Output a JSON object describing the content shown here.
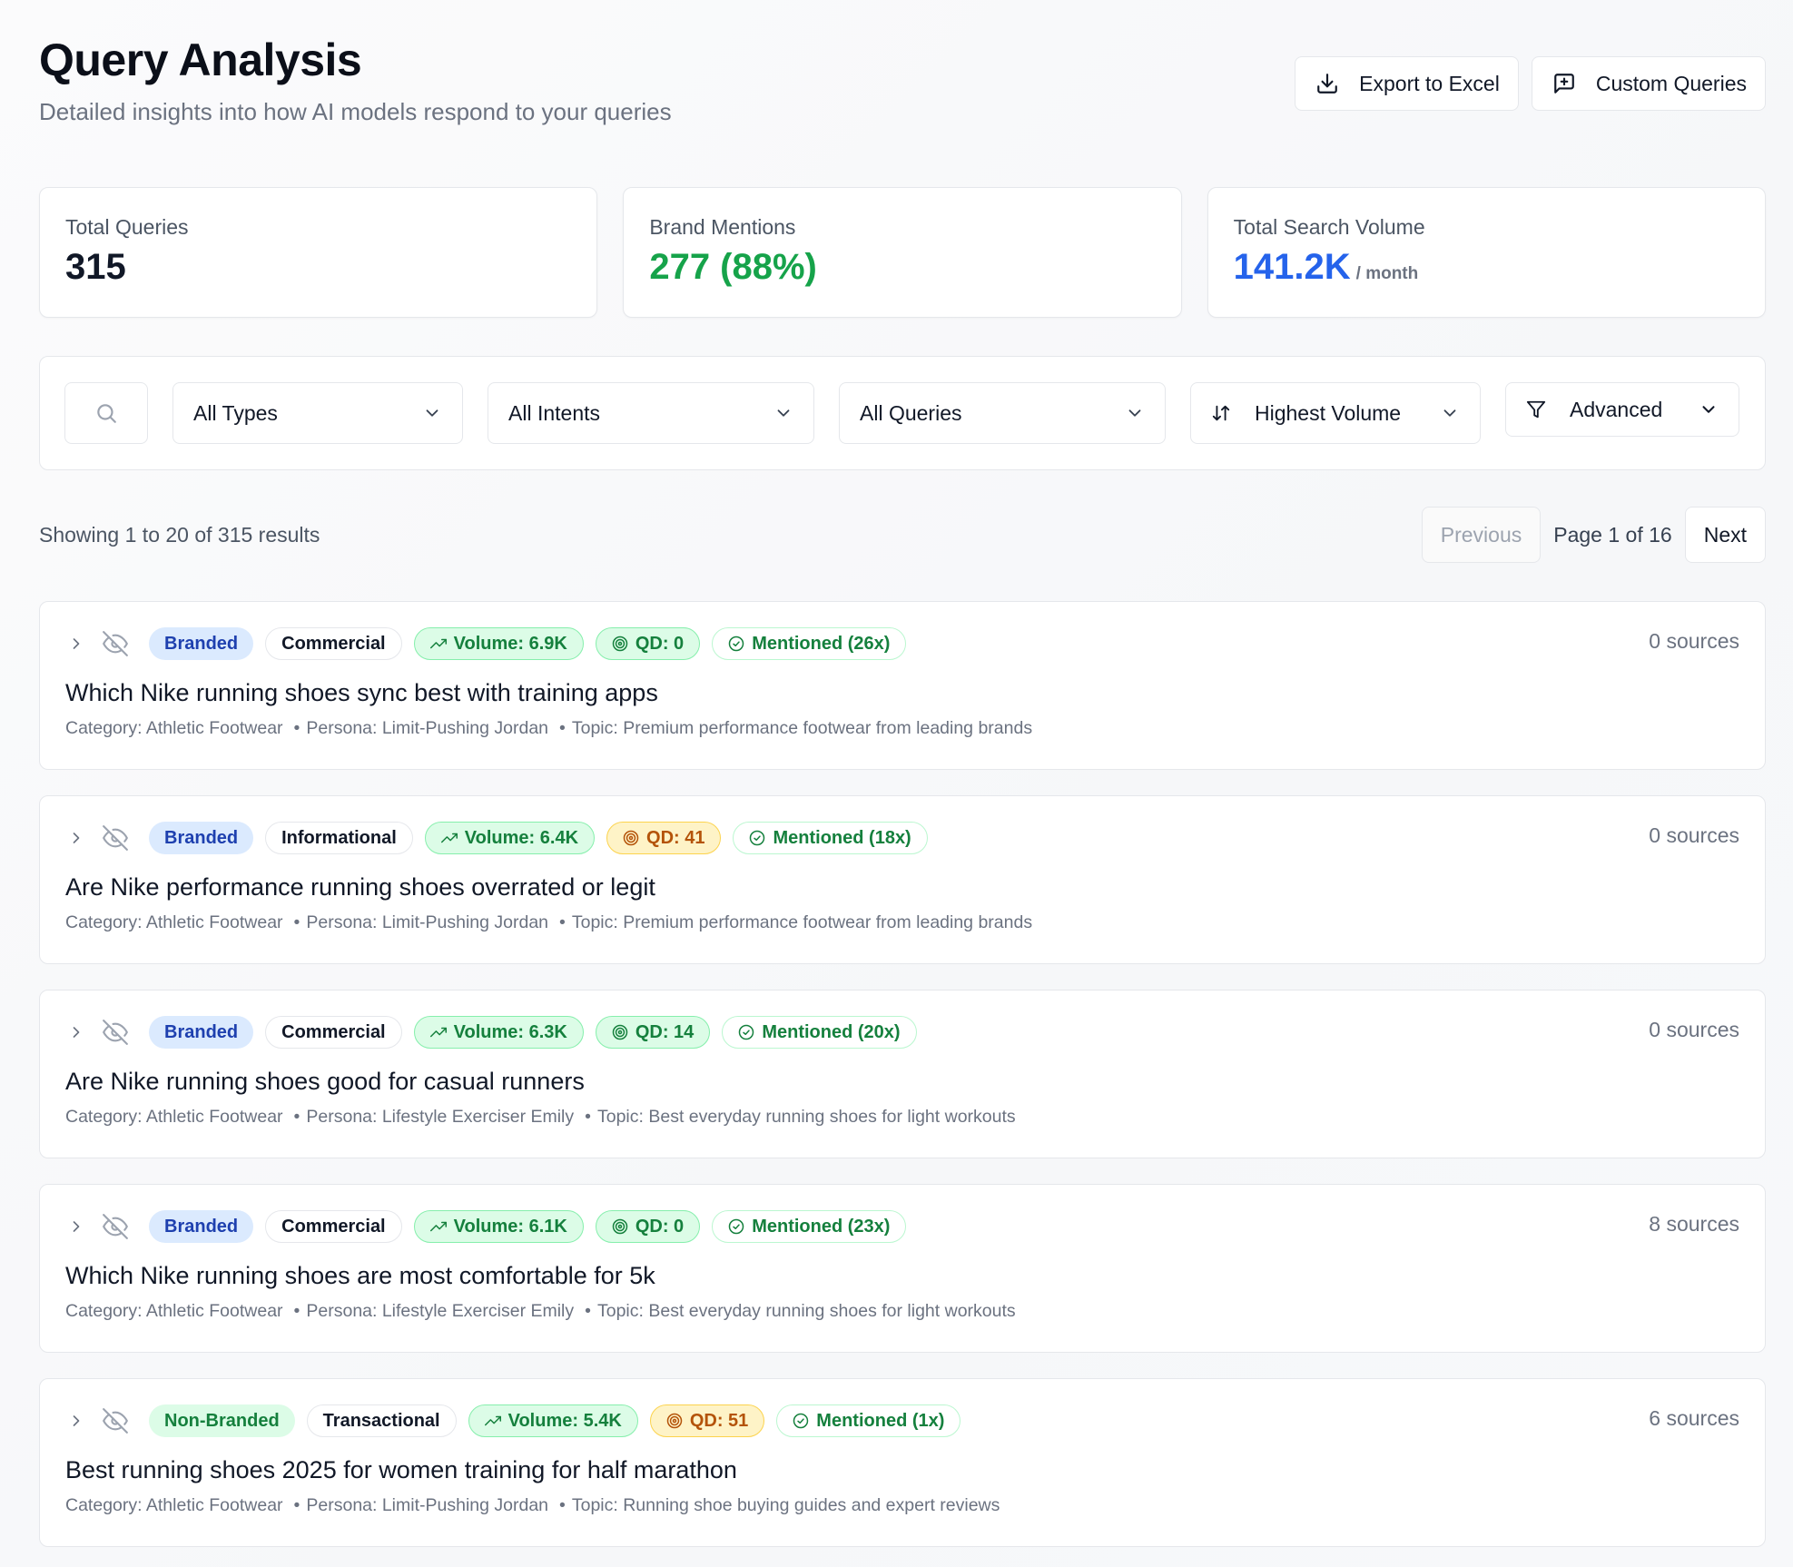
{
  "header": {
    "title": "Query Analysis",
    "subtitle": "Detailed insights into how AI models respond to your queries",
    "export_label": "Export to Excel",
    "custom_label": "Custom Queries"
  },
  "stats": {
    "total_queries": {
      "label": "Total Queries",
      "value": "315"
    },
    "brand_mentions": {
      "label": "Brand Mentions",
      "value": "277 (88%)"
    },
    "search_volume": {
      "label": "Total Search Volume",
      "value": "141.2K",
      "suffix": "/ month"
    }
  },
  "filters": {
    "search_placeholder": "",
    "types": "All Types",
    "intents": "All Intents",
    "queries": "All Queries",
    "sort": "Highest Volume",
    "advanced": "Advanced"
  },
  "results": {
    "showing": "Showing 1 to 20 of 315 results",
    "previous": "Previous",
    "page": "Page 1 of 16",
    "next": "Next"
  },
  "queries": [
    {
      "type": "Branded",
      "intent": "Commercial",
      "volume": "Volume: 6.9K",
      "qd": "QD: 0",
      "qd_level": "green",
      "mentioned": "Mentioned (26x)",
      "sources": "0 sources",
      "title": "Which Nike running shoes sync best with training apps",
      "category": "Category: Athletic Footwear",
      "persona": "Persona: Limit-Pushing Jordan",
      "topic": "Topic: Premium performance footwear from leading brands"
    },
    {
      "type": "Branded",
      "intent": "Informational",
      "volume": "Volume: 6.4K",
      "qd": "QD: 41",
      "qd_level": "yellow",
      "mentioned": "Mentioned (18x)",
      "sources": "0 sources",
      "title": "Are Nike performance running shoes overrated or legit",
      "category": "Category: Athletic Footwear",
      "persona": "Persona: Limit-Pushing Jordan",
      "topic": "Topic: Premium performance footwear from leading brands"
    },
    {
      "type": "Branded",
      "intent": "Commercial",
      "volume": "Volume: 6.3K",
      "qd": "QD: 14",
      "qd_level": "green",
      "mentioned": "Mentioned (20x)",
      "sources": "0 sources",
      "title": "Are Nike running shoes good for casual runners",
      "category": "Category: Athletic Footwear",
      "persona": "Persona: Lifestyle Exerciser Emily",
      "topic": "Topic: Best everyday running shoes for light workouts"
    },
    {
      "type": "Branded",
      "intent": "Commercial",
      "volume": "Volume: 6.1K",
      "qd": "QD: 0",
      "qd_level": "green",
      "mentioned": "Mentioned (23x)",
      "sources": "8 sources",
      "title": "Which Nike running shoes are most comfortable for 5k",
      "category": "Category: Athletic Footwear",
      "persona": "Persona: Lifestyle Exerciser Emily",
      "topic": "Topic: Best everyday running shoes for light workouts"
    },
    {
      "type": "Non-Branded",
      "intent": "Transactional",
      "volume": "Volume: 5.4K",
      "qd": "QD: 51",
      "qd_level": "yellow",
      "mentioned": "Mentioned (1x)",
      "sources": "6 sources",
      "title": "Best running shoes 2025 for women training for half marathon",
      "category": "Category: Athletic Footwear",
      "persona": "Persona: Limit-Pushing Jordan",
      "topic": "Topic: Running shoe buying guides and expert reviews"
    }
  ],
  "colors": {
    "accent_blue": "#2563eb",
    "success_green": "#16a34a",
    "warning_amber": "#b45309"
  }
}
